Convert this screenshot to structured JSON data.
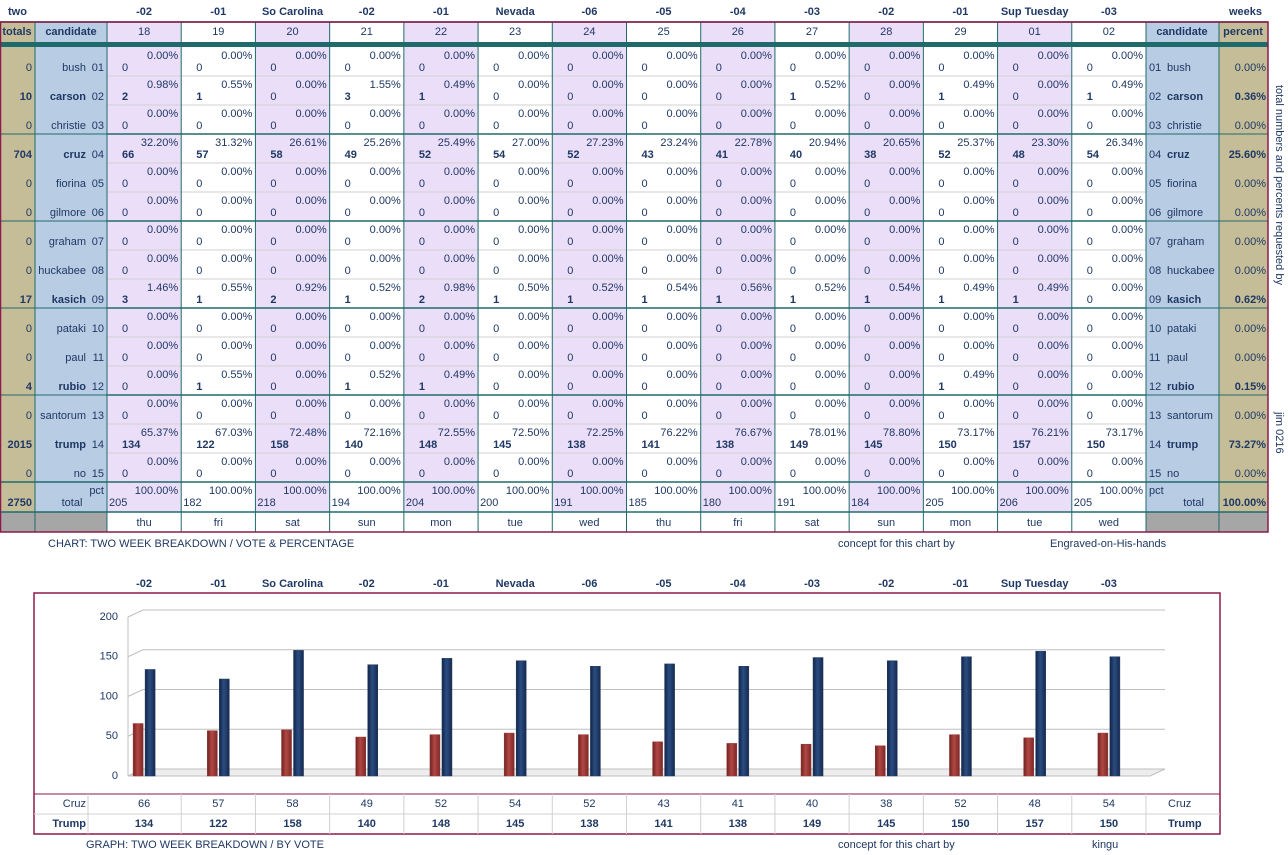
{
  "table": {
    "corner_left": "two",
    "corner_right": "weeks",
    "top_labels": [
      "-02",
      "-01",
      "So Carolina",
      "-02",
      "-01",
      "Nevada",
      "-06",
      "-05",
      "-04",
      "-03",
      "-02",
      "-01",
      "Sup Tuesday",
      "-03"
    ],
    "header": {
      "left": [
        "totals",
        "candidate"
      ],
      "days": [
        "18",
        "19",
        "20",
        "21",
        "22",
        "23",
        "24",
        "25",
        "26",
        "27",
        "28",
        "29",
        "01",
        "02"
      ],
      "right": [
        "candidate",
        "percent"
      ]
    },
    "rows": [
      {
        "num": "01",
        "name": "bush",
        "total": 0,
        "percent": "0.00%",
        "counts": [
          0,
          0,
          0,
          0,
          0,
          0,
          0,
          0,
          0,
          0,
          0,
          0,
          0,
          0
        ],
        "pcts": [
          "0.00%",
          "0.00%",
          "0.00%",
          "0.00%",
          "0.00%",
          "0.00%",
          "0.00%",
          "0.00%",
          "0.00%",
          "0.00%",
          "0.00%",
          "0.00%",
          "0.00%",
          "0.00%"
        ]
      },
      {
        "num": "02",
        "name": "carson",
        "total": 10,
        "percent": "0.36%",
        "counts": [
          2,
          1,
          0,
          3,
          1,
          0,
          0,
          0,
          0,
          1,
          0,
          1,
          0,
          1
        ],
        "pcts": [
          "0.98%",
          "0.55%",
          "0.00%",
          "1.55%",
          "0.49%",
          "0.00%",
          "0.00%",
          "0.00%",
          "0.00%",
          "0.52%",
          "0.00%",
          "0.49%",
          "0.00%",
          "0.49%"
        ]
      },
      {
        "num": "03",
        "name": "christie",
        "total": 0,
        "percent": "0.00%",
        "counts": [
          0,
          0,
          0,
          0,
          0,
          0,
          0,
          0,
          0,
          0,
          0,
          0,
          0,
          0
        ],
        "pcts": [
          "0.00%",
          "0.00%",
          "0.00%",
          "0.00%",
          "0.00%",
          "0.00%",
          "0.00%",
          "0.00%",
          "0.00%",
          "0.00%",
          "0.00%",
          "0.00%",
          "0.00%",
          "0.00%"
        ]
      },
      {
        "num": "04",
        "name": "cruz",
        "total": 704,
        "percent": "25.60%",
        "counts": [
          66,
          57,
          58,
          49,
          52,
          54,
          52,
          43,
          41,
          40,
          38,
          52,
          48,
          54
        ],
        "pcts": [
          "32.20%",
          "31.32%",
          "26.61%",
          "25.26%",
          "25.49%",
          "27.00%",
          "27.23%",
          "23.24%",
          "22.78%",
          "20.94%",
          "20.65%",
          "25.37%",
          "23.30%",
          "26.34%"
        ]
      },
      {
        "num": "05",
        "name": "fiorina",
        "total": 0,
        "percent": "0.00%",
        "counts": [
          0,
          0,
          0,
          0,
          0,
          0,
          0,
          0,
          0,
          0,
          0,
          0,
          0,
          0
        ],
        "pcts": [
          "0.00%",
          "0.00%",
          "0.00%",
          "0.00%",
          "0.00%",
          "0.00%",
          "0.00%",
          "0.00%",
          "0.00%",
          "0.00%",
          "0.00%",
          "0.00%",
          "0.00%",
          "0.00%"
        ]
      },
      {
        "num": "06",
        "name": "gilmore",
        "total": 0,
        "percent": "0.00%",
        "counts": [
          0,
          0,
          0,
          0,
          0,
          0,
          0,
          0,
          0,
          0,
          0,
          0,
          0,
          0
        ],
        "pcts": [
          "0.00%",
          "0.00%",
          "0.00%",
          "0.00%",
          "0.00%",
          "0.00%",
          "0.00%",
          "0.00%",
          "0.00%",
          "0.00%",
          "0.00%",
          "0.00%",
          "0.00%",
          "0.00%"
        ]
      },
      {
        "num": "07",
        "name": "graham",
        "total": 0,
        "percent": "0.00%",
        "counts": [
          0,
          0,
          0,
          0,
          0,
          0,
          0,
          0,
          0,
          0,
          0,
          0,
          0,
          0
        ],
        "pcts": [
          "0.00%",
          "0.00%",
          "0.00%",
          "0.00%",
          "0.00%",
          "0.00%",
          "0.00%",
          "0.00%",
          "0.00%",
          "0.00%",
          "0.00%",
          "0.00%",
          "0.00%",
          "0.00%"
        ]
      },
      {
        "num": "08",
        "name": "huckabee",
        "total": 0,
        "percent": "0.00%",
        "counts": [
          0,
          0,
          0,
          0,
          0,
          0,
          0,
          0,
          0,
          0,
          0,
          0,
          0,
          0
        ],
        "pcts": [
          "0.00%",
          "0.00%",
          "0.00%",
          "0.00%",
          "0.00%",
          "0.00%",
          "0.00%",
          "0.00%",
          "0.00%",
          "0.00%",
          "0.00%",
          "0.00%",
          "0.00%",
          "0.00%"
        ]
      },
      {
        "num": "09",
        "name": "kasich",
        "total": 17,
        "percent": "0.62%",
        "counts": [
          3,
          1,
          2,
          1,
          2,
          1,
          1,
          1,
          1,
          1,
          1,
          1,
          1,
          0
        ],
        "pcts": [
          "1.46%",
          "0.55%",
          "0.92%",
          "0.52%",
          "0.98%",
          "0.50%",
          "0.52%",
          "0.54%",
          "0.56%",
          "0.52%",
          "0.54%",
          "0.49%",
          "0.49%",
          "0.00%"
        ]
      },
      {
        "num": "10",
        "name": "pataki",
        "total": 0,
        "percent": "0.00%",
        "counts": [
          0,
          0,
          0,
          0,
          0,
          0,
          0,
          0,
          0,
          0,
          0,
          0,
          0,
          0
        ],
        "pcts": [
          "0.00%",
          "0.00%",
          "0.00%",
          "0.00%",
          "0.00%",
          "0.00%",
          "0.00%",
          "0.00%",
          "0.00%",
          "0.00%",
          "0.00%",
          "0.00%",
          "0.00%",
          "0.00%"
        ]
      },
      {
        "num": "11",
        "name": "paul",
        "total": 0,
        "percent": "0.00%",
        "counts": [
          0,
          0,
          0,
          0,
          0,
          0,
          0,
          0,
          0,
          0,
          0,
          0,
          0,
          0
        ],
        "pcts": [
          "0.00%",
          "0.00%",
          "0.00%",
          "0.00%",
          "0.00%",
          "0.00%",
          "0.00%",
          "0.00%",
          "0.00%",
          "0.00%",
          "0.00%",
          "0.00%",
          "0.00%",
          "0.00%"
        ]
      },
      {
        "num": "12",
        "name": "rubio",
        "total": 4,
        "percent": "0.15%",
        "counts": [
          0,
          1,
          0,
          1,
          1,
          0,
          0,
          0,
          0,
          0,
          0,
          1,
          0,
          0
        ],
        "pcts": [
          "0.00%",
          "0.55%",
          "0.00%",
          "0.52%",
          "0.49%",
          "0.00%",
          "0.00%",
          "0.00%",
          "0.00%",
          "0.00%",
          "0.00%",
          "0.49%",
          "0.00%",
          "0.00%"
        ]
      },
      {
        "num": "13",
        "name": "santorum",
        "total": 0,
        "percent": "0.00%",
        "counts": [
          0,
          0,
          0,
          0,
          0,
          0,
          0,
          0,
          0,
          0,
          0,
          0,
          0,
          0
        ],
        "pcts": [
          "0.00%",
          "0.00%",
          "0.00%",
          "0.00%",
          "0.00%",
          "0.00%",
          "0.00%",
          "0.00%",
          "0.00%",
          "0.00%",
          "0.00%",
          "0.00%",
          "0.00%",
          "0.00%"
        ]
      },
      {
        "num": "14",
        "name": "trump",
        "total": 2015,
        "percent": "73.27%",
        "counts": [
          134,
          122,
          158,
          140,
          148,
          145,
          138,
          141,
          138,
          149,
          145,
          150,
          157,
          150
        ],
        "pcts": [
          "65.37%",
          "67.03%",
          "72.48%",
          "72.16%",
          "72.55%",
          "72.50%",
          "72.25%",
          "76.22%",
          "76.67%",
          "78.01%",
          "78.80%",
          "73.17%",
          "76.21%",
          "73.17%"
        ]
      },
      {
        "num": "15",
        "name": "no",
        "total": 0,
        "percent": "0.00%",
        "counts": [
          0,
          0,
          0,
          0,
          0,
          0,
          0,
          0,
          0,
          0,
          0,
          0,
          0,
          0
        ],
        "pcts": [
          "0.00%",
          "0.00%",
          "0.00%",
          "0.00%",
          "0.00%",
          "0.00%",
          "0.00%",
          "0.00%",
          "0.00%",
          "0.00%",
          "0.00%",
          "0.00%",
          "0.00%",
          "0.00%"
        ]
      }
    ],
    "totals": {
      "total": 2750,
      "pct_label": "pct",
      "label": "total",
      "percent": "100.00%",
      "counts": [
        205,
        182,
        218,
        194,
        204,
        200,
        191,
        185,
        180,
        191,
        184,
        205,
        206,
        205
      ],
      "pcts": [
        "100.00%",
        "100.00%",
        "100.00%",
        "100.00%",
        "100.00%",
        "100.00%",
        "100.00%",
        "100.00%",
        "100.00%",
        "100.00%",
        "100.00%",
        "100.00%",
        "100.00%",
        "100.00%"
      ]
    },
    "weekdays": [
      "thu",
      "fri",
      "sat",
      "sun",
      "mon",
      "tue",
      "wed",
      "thu",
      "fri",
      "sat",
      "sun",
      "mon",
      "tue",
      "wed"
    ],
    "caption": "CHART: TWO WEEK BREAKDOWN / VOTE & PERCENTAGE",
    "credit_label": "concept for this chart by",
    "credit": "Engraved-on-His-hands",
    "side_note": "total numbers and percents requested by",
    "side_credit": "jim 0216"
  },
  "chart_data": {
    "type": "bar",
    "series": [
      {
        "name": "Cruz",
        "color": "#943634",
        "values": [
          66,
          57,
          58,
          49,
          52,
          54,
          52,
          43,
          41,
          40,
          38,
          52,
          48,
          54
        ]
      },
      {
        "name": "Trump",
        "color": "#1f3864",
        "values": [
          134,
          122,
          158,
          140,
          148,
          145,
          138,
          141,
          138,
          149,
          145,
          150,
          157,
          150
        ]
      }
    ],
    "ylim": [
      0,
      200
    ],
    "yticks": [
      0,
      50,
      100,
      150,
      200
    ],
    "grid": true,
    "caption": "GRAPH: TWO WEEK BREAKDOWN / BY VOTE",
    "credit_label": "concept for this chart by",
    "credit": "kingu"
  }
}
